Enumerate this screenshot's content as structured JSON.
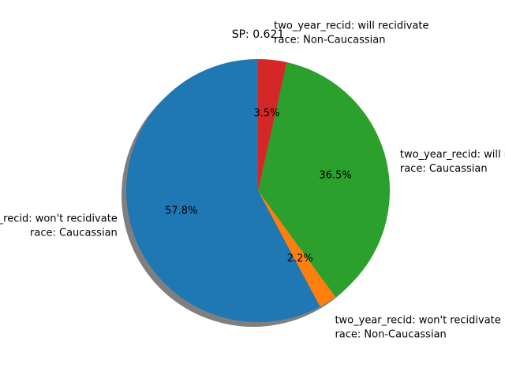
{
  "chart_data": {
    "type": "pie",
    "title": "SP: 0.621",
    "slices": [
      {
        "label_line1": "two_year_recid: won't recidivate",
        "label_line2": "race: Caucassian",
        "percent_label": "57.8%",
        "value": 57.8,
        "color": "#1f77b4"
      },
      {
        "label_line1": "two_year_recid: won't recidivate",
        "label_line2": "race: Non-Caucassian",
        "percent_label": "2.2%",
        "value": 2.2,
        "color": "#ff7f0e"
      },
      {
        "label_line1": "two_year_recid: will recidivate",
        "label_line2": "race: Caucassian",
        "percent_label": "36.5%",
        "value": 36.5,
        "color": "#2ca02c"
      },
      {
        "label_line1": "two_year_recid: will recidivate",
        "label_line2": "race: Non-Caucassian",
        "percent_label": "3.5%",
        "value": 3.5,
        "color": "#d62728"
      }
    ],
    "start_angle_deg": 90,
    "direction": "counterclockwise",
    "shadow": true,
    "legend": "none"
  }
}
